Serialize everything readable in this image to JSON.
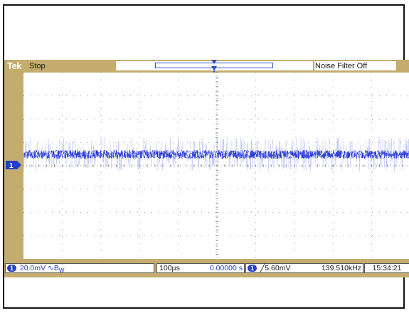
{
  "scope": {
    "brand": "Tek",
    "run_state": "Stop",
    "noise_filter": "Noise Filter Off",
    "channel_marker": "1",
    "colors": {
      "bezel": "#c3ac6e",
      "trace": "#2434d8",
      "grid": "#9a9a9a",
      "accent": "#2b50c8"
    },
    "bottom": {
      "ch_badge": "1",
      "volts_div": "20.0mV",
      "coupling_glyph": "∿",
      "bw_limit": "B",
      "bw_suffix": "W",
      "time_div": "100µs",
      "horiz_position": "0.00000 s",
      "trig_badge": "1",
      "trig_slope_glyph": "╱",
      "trig_level": "5.60mV",
      "frequency": "139.510kHz",
      "clock": "15:34:21"
    }
  }
}
